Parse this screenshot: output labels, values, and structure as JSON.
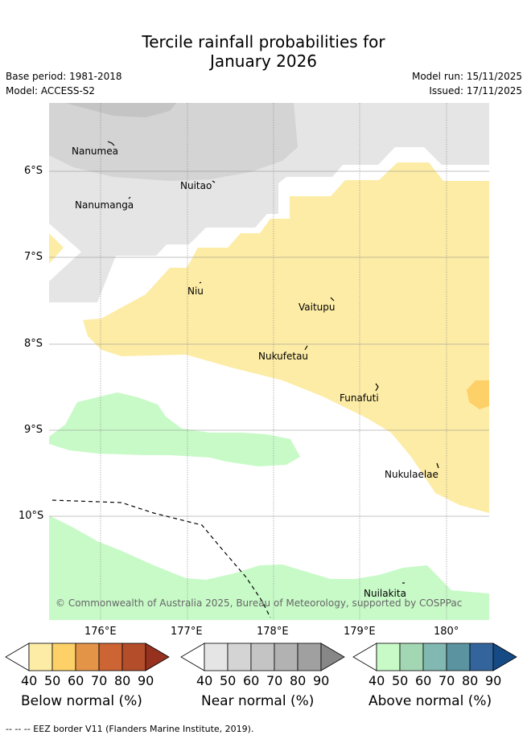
{
  "title": {
    "line1": "Tercile rainfall probabilities for",
    "line2": "January 2026"
  },
  "meta": {
    "base_period": "Base period: 1981-2018",
    "model": "Model: ACCESS-S2",
    "model_run": "Model run: 15/11/2025",
    "issued": "Issued: 17/11/2025"
  },
  "map": {
    "lat_labels": [
      "6°S",
      "7°S",
      "8°S",
      "9°S",
      "10°S"
    ],
    "lon_labels": [
      "176°E",
      "177°E",
      "178°E",
      "179°E",
      "180°"
    ],
    "places": [
      "Nanumea",
      "Nuitao",
      "Nanumanga",
      "Niu",
      "Vaitupu",
      "Nukufetau",
      "Funafuti",
      "Nukulaelae",
      "Nuilakita"
    ],
    "credit": "© Commonwealth of Australia 2025, Bureau of Meteorology, supported by COSPPac"
  },
  "colors": {
    "below": [
      "#fdeca6",
      "#fdd068",
      "#e39447",
      "#cd6434",
      "#b44d2a",
      "#96311f"
    ],
    "near": [
      "#e5e5e5",
      "#d4d4d4",
      "#c4c4c4",
      "#b2b2b2",
      "#a0a0a0",
      "#878787"
    ],
    "above": [
      "#c8fac8",
      "#a3d7b3",
      "#82b8b2",
      "#5b93a1",
      "#33659c",
      "#164a84"
    ]
  },
  "legends": [
    {
      "caption": "Below normal (%)",
      "ticks": [
        "40",
        "50",
        "60",
        "70",
        "80",
        "90"
      ]
    },
    {
      "caption": "Near normal (%)",
      "ticks": [
        "40",
        "50",
        "60",
        "70",
        "80",
        "90"
      ]
    },
    {
      "caption": "Above normal (%)",
      "ticks": [
        "40",
        "50",
        "60",
        "70",
        "80",
        "90"
      ]
    }
  ],
  "footer": "--  --  -- EEZ border V11 (Flanders Marine Institute, 2019)."
}
